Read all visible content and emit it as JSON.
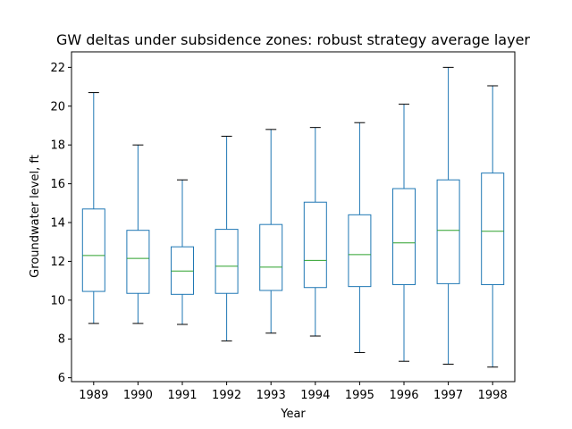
{
  "chart_data": {
    "type": "boxplot",
    "title": "GW deltas under subsidence zones: robust strategy average layer",
    "xlabel": "Year",
    "ylabel": "Groundwater level, ft",
    "ylim": [
      5.8,
      22.8
    ],
    "yticks": [
      6,
      8,
      10,
      12,
      14,
      16,
      18,
      20,
      22
    ],
    "grid": false,
    "categories": [
      "1989",
      "1990",
      "1991",
      "1992",
      "1993",
      "1994",
      "1995",
      "1996",
      "1997",
      "1998"
    ],
    "boxes": [
      {
        "whisker_low": 8.8,
        "q1": 10.45,
        "median": 12.3,
        "q3": 14.7,
        "whisker_high": 20.7
      },
      {
        "whisker_low": 8.8,
        "q1": 10.35,
        "median": 12.15,
        "q3": 13.6,
        "whisker_high": 18.0
      },
      {
        "whisker_low": 8.75,
        "q1": 10.3,
        "median": 11.5,
        "q3": 12.75,
        "whisker_high": 16.2
      },
      {
        "whisker_low": 7.9,
        "q1": 10.35,
        "median": 11.75,
        "q3": 13.65,
        "whisker_high": 18.45
      },
      {
        "whisker_low": 8.3,
        "q1": 10.5,
        "median": 11.7,
        "q3": 13.9,
        "whisker_high": 18.8
      },
      {
        "whisker_low": 8.15,
        "q1": 10.65,
        "median": 12.05,
        "q3": 15.05,
        "whisker_high": 18.9
      },
      {
        "whisker_low": 7.3,
        "q1": 10.7,
        "median": 12.35,
        "q3": 14.4,
        "whisker_high": 19.15
      },
      {
        "whisker_low": 6.85,
        "q1": 10.8,
        "median": 12.95,
        "q3": 15.75,
        "whisker_high": 20.1
      },
      {
        "whisker_low": 6.7,
        "q1": 10.85,
        "median": 13.6,
        "q3": 16.2,
        "whisker_high": 22.0
      },
      {
        "whisker_low": 6.55,
        "q1": 10.8,
        "median": 13.55,
        "q3": 16.55,
        "whisker_high": 21.05
      }
    ],
    "colors": {
      "box": "#1f77b4",
      "median": "#2ca02c",
      "cap": "#000000",
      "axes": "#000000"
    }
  }
}
